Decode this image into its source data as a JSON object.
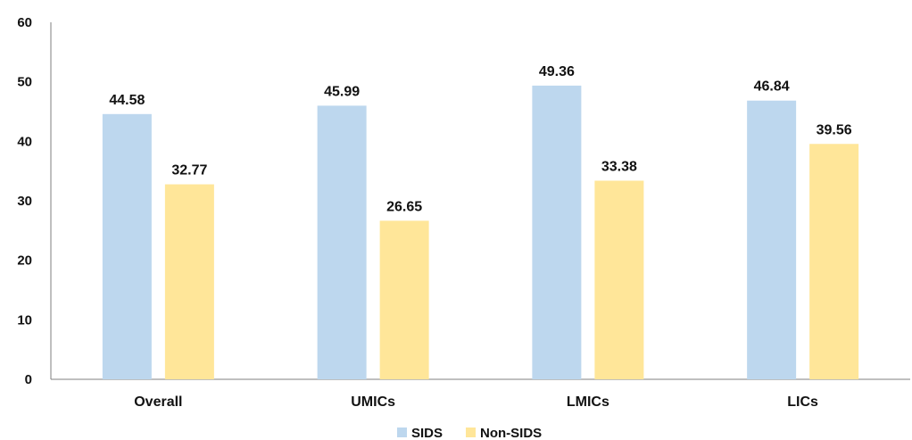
{
  "chart_data": {
    "type": "bar",
    "categories": [
      "Overall",
      "UMICs",
      "LMICs",
      "LICs"
    ],
    "series": [
      {
        "name": "SIDS",
        "values": [
          44.58,
          45.99,
          49.36,
          46.84
        ],
        "color": "#BDD7EE"
      },
      {
        "name": "Non-SIDS",
        "values": [
          32.77,
          26.65,
          33.38,
          39.56
        ],
        "color": "#FFE699"
      }
    ],
    "data_labels": [
      [
        "44.58",
        "45.99",
        "49.36",
        "46.84"
      ],
      [
        "32.77",
        "26.65",
        "33.38",
        "39.56"
      ]
    ],
    "yticks": [
      "0",
      "10",
      "20",
      "30",
      "40",
      "50",
      "60"
    ],
    "ylim": [
      0,
      60
    ],
    "title": "",
    "xlabel": "",
    "ylabel": "",
    "grid": false,
    "legend_position": "bottom"
  }
}
